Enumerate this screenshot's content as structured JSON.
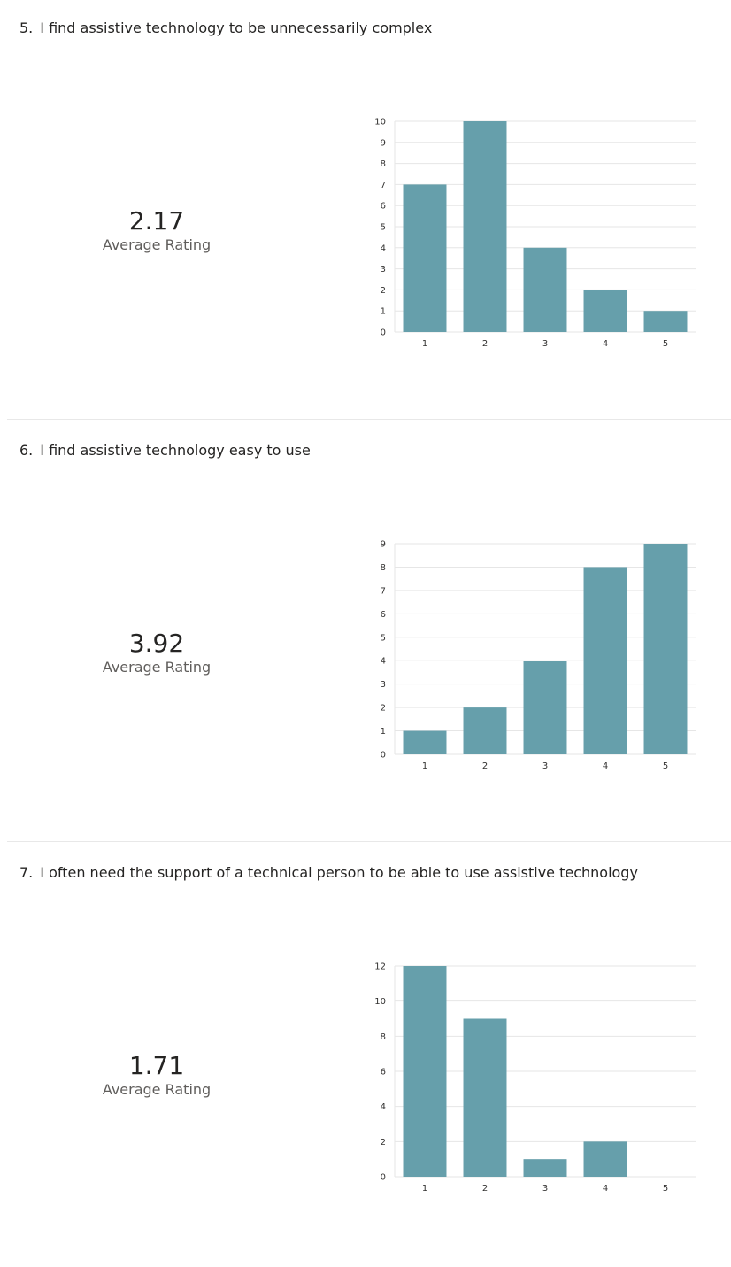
{
  "questions": [
    {
      "number": "5.",
      "title": "I find assistive technology to be unnecessarily complex",
      "average": "2.17",
      "average_label": "Average Rating"
    },
    {
      "number": "6.",
      "title": "I find assistive technology easy to use",
      "average": "3.92",
      "average_label": "Average Rating"
    },
    {
      "number": "7.",
      "title": "I often need the support of a technical person to be able to use assistive technology",
      "average": "1.71",
      "average_label": "Average Rating"
    }
  ],
  "colors": {
    "bar": "#669fab",
    "grid": "#e6e6e6"
  },
  "chart_data": [
    {
      "type": "bar",
      "categories": [
        "1",
        "2",
        "3",
        "4",
        "5"
      ],
      "values": [
        7,
        10,
        4,
        2,
        1
      ],
      "ylim": [
        0,
        10
      ],
      "yticks": [
        0,
        1,
        2,
        3,
        4,
        5,
        6,
        7,
        8,
        9,
        10
      ],
      "grid": true,
      "title": "",
      "xlabel": "",
      "ylabel": ""
    },
    {
      "type": "bar",
      "categories": [
        "1",
        "2",
        "3",
        "4",
        "5"
      ],
      "values": [
        1,
        2,
        4,
        8,
        9
      ],
      "ylim": [
        0,
        9
      ],
      "yticks": [
        0,
        1,
        2,
        3,
        4,
        5,
        6,
        7,
        8,
        9
      ],
      "grid": true,
      "title": "",
      "xlabel": "",
      "ylabel": ""
    },
    {
      "type": "bar",
      "categories": [
        "1",
        "2",
        "3",
        "4",
        "5"
      ],
      "values": [
        12,
        9,
        1,
        2,
        0
      ],
      "ylim": [
        0,
        12
      ],
      "yticks": [
        0,
        2,
        4,
        6,
        8,
        10,
        12
      ],
      "grid": true,
      "title": "",
      "xlabel": "",
      "ylabel": ""
    }
  ]
}
